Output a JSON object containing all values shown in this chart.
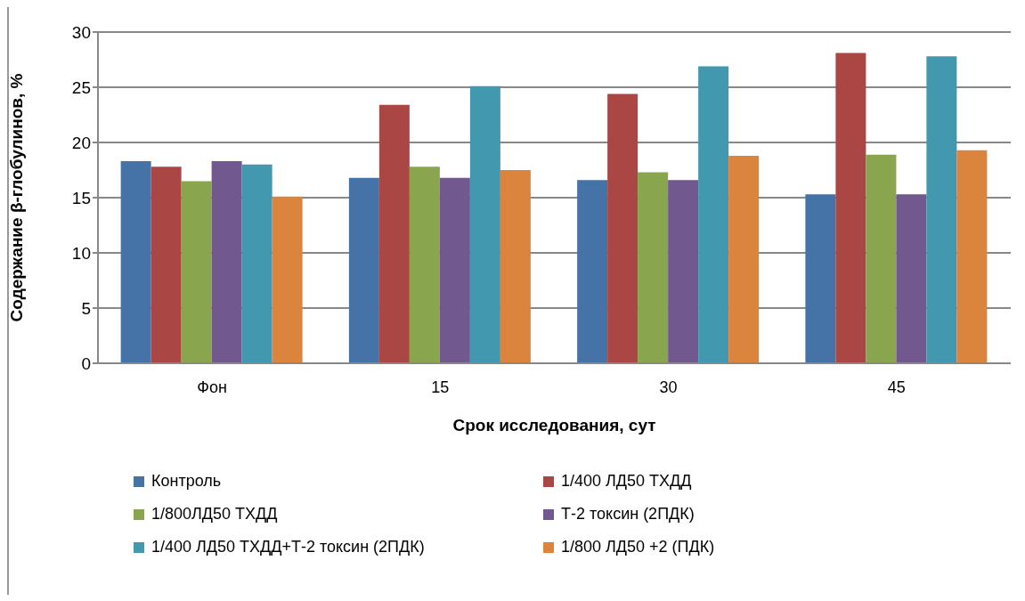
{
  "chart_data": {
    "type": "bar",
    "xlabel": "Срок исследования,  сут",
    "ylabel": "Содержание  β-глобулинов,  %",
    "categories": [
      "Фон",
      "15",
      "30",
      "45"
    ],
    "series": [
      {
        "name": "Контроль",
        "color": "#4572a7",
        "values": [
          18.3,
          16.8,
          16.6,
          15.3
        ]
      },
      {
        "name": "1/400 ЛД50 ТХДД",
        "color": "#aa4643",
        "values": [
          17.8,
          23.4,
          24.4,
          28.1
        ]
      },
      {
        "name": "1/800ЛД50 ТХДД",
        "color": "#89a54e",
        "values": [
          16.5,
          17.8,
          17.3,
          18.9
        ]
      },
      {
        "name": "Т-2 токсин (2ПДК)",
        "color": "#71588f",
        "values": [
          18.3,
          16.8,
          16.6,
          15.3
        ]
      },
      {
        "name": "1/400 ЛД50 ТХДД+Т-2  токсин (2ПДК)",
        "color": "#4198af",
        "values": [
          18,
          25.1,
          26.9,
          27.8
        ]
      },
      {
        "name": "1/800 ЛД50 +2  (ПДК)",
        "color": "#db843d",
        "values": [
          15.1,
          17.5,
          18.8,
          19.3
        ]
      }
    ],
    "ylim": [
      0,
      30
    ],
    "yticks": [
      0,
      5,
      10,
      15,
      20,
      25,
      30
    ],
    "grid": "y",
    "legend": "bottom"
  }
}
